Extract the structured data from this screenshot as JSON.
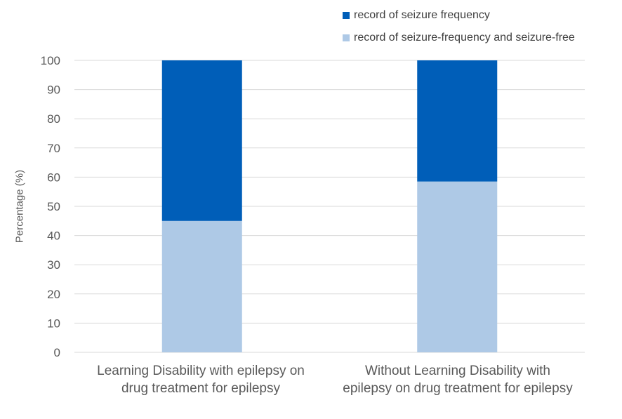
{
  "chart_data": {
    "type": "bar",
    "stacked": true,
    "categories": [
      "Learning Disability with epilepsy on drug treatment for epilepsy",
      "Without Learning Disability with epilepsy on drug treatment for epilepsy"
    ],
    "category_lines": [
      [
        "Learning Disability with epilepsy on",
        "drug treatment for epilepsy"
      ],
      [
        "Without Learning Disability with",
        "epilepsy on drug treatment for epilepsy"
      ]
    ],
    "series": [
      {
        "name": "record of seizure-frequency and seizure-free",
        "values": [
          45,
          58.5
        ],
        "color": "#aec9e6"
      },
      {
        "name": "record of seizure frequency",
        "values": [
          55,
          41.5
        ],
        "color": "#005eb8"
      }
    ],
    "ylabel": "Percentage (%)",
    "xlabel": "",
    "ylim": [
      0,
      100
    ],
    "yticks": [
      0,
      10,
      20,
      30,
      40,
      50,
      60,
      70,
      80,
      90,
      100
    ],
    "grid": true,
    "gridColor": "#d9d9d9",
    "legend_position": "top-right"
  },
  "legend": [
    {
      "label": "record of seizure frequency",
      "color": "#005eb8"
    },
    {
      "label": "record of seizure-frequency and seizure-free",
      "color": "#aec9e6"
    }
  ]
}
